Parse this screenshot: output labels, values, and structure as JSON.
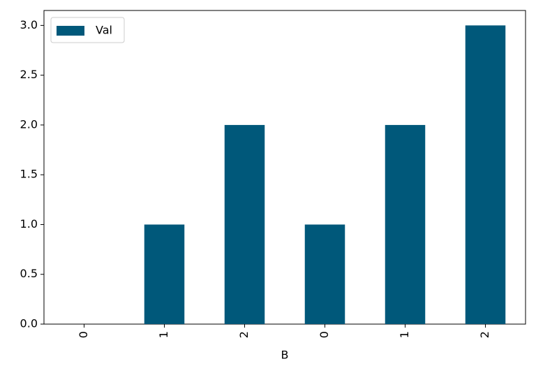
{
  "chart_data": {
    "type": "bar",
    "x_label": "B",
    "categories": [
      "0",
      "1",
      "2",
      "0",
      "1",
      "2"
    ],
    "series": [
      {
        "name": "Val",
        "color": "#00587a",
        "values": [
          0,
          1,
          2,
          1,
          2,
          3
        ]
      }
    ],
    "ylim": [
      0,
      3.15
    ],
    "yticks": [
      {
        "value": 0,
        "label": "0.0"
      },
      0.5,
      {
        "value": 1,
        "label": "1.0"
      },
      1.5,
      {
        "value": 2,
        "label": "2.0"
      },
      2.5,
      {
        "value": 3,
        "label": "3.0"
      }
    ],
    "legend": "upper left"
  }
}
